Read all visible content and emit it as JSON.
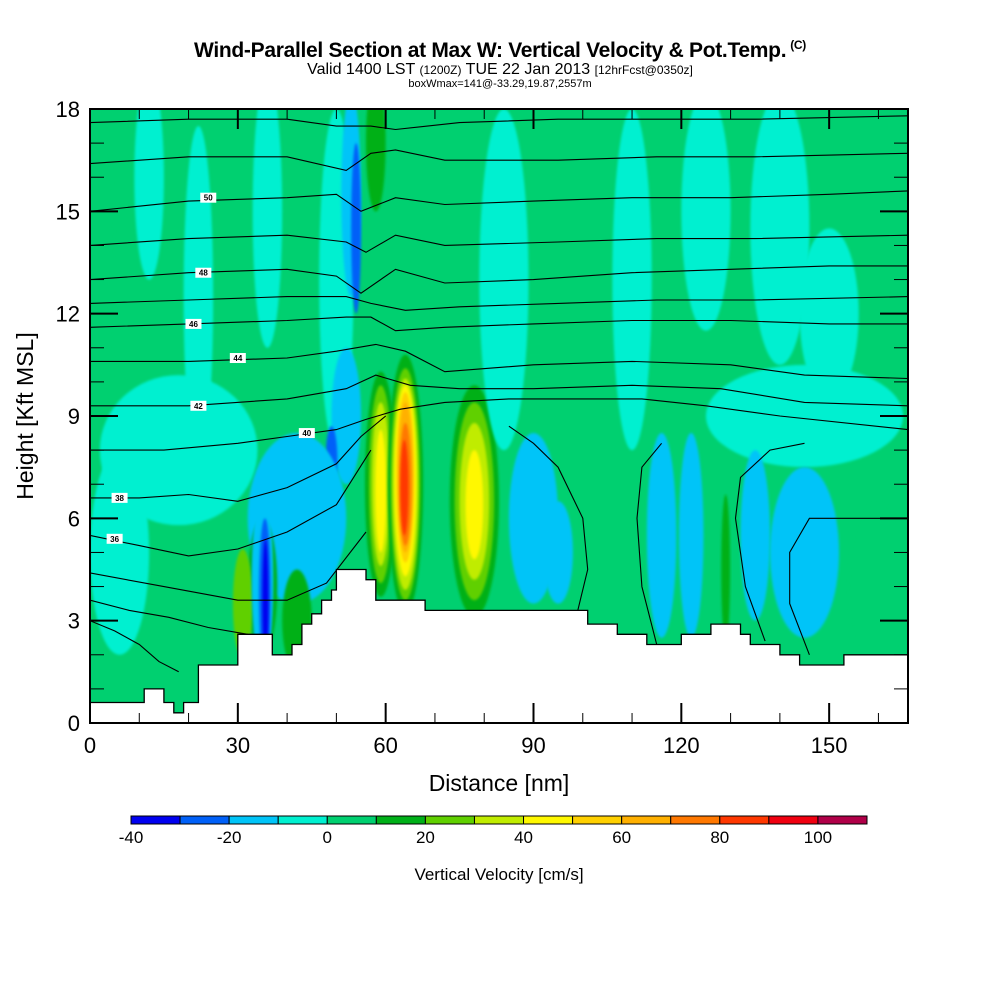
{
  "header": {
    "title": "Wind-Parallel Section at Max W: Vertical Velocity & Pot.Temp.",
    "copyright": "(C)",
    "valid_prefix": "Valid 1400 LST",
    "valid_utc": "(1200Z)",
    "valid_date": "TUE 22 Jan 2013",
    "forecast": "[12hrFcst@0350z]",
    "boxwmax": "boxWmax=141@-33.29,19.87,2557m"
  },
  "chart_data": {
    "type": "heatmap",
    "title": "Wind-Parallel Section at Max W: Vertical Velocity & Pot.Temp.",
    "xlabel": "Distance [nm]",
    "ylabel": "Height [Kft MSL]",
    "xlim": [
      0,
      166
    ],
    "ylim": [
      0,
      18
    ],
    "xticks": [
      0,
      30,
      60,
      90,
      120,
      150
    ],
    "xtick_labels": [
      "0",
      "30",
      "60",
      "90",
      "120",
      "150"
    ],
    "yticks": [
      0,
      3,
      6,
      9,
      12,
      15,
      18
    ],
    "ytick_labels": [
      "0",
      "3",
      "6",
      "9",
      "12",
      "15",
      "18"
    ],
    "colorbar": {
      "title": "Vertical Velocity [cm/s]",
      "bounds": [
        -40,
        -30,
        -20,
        -10,
        0,
        10,
        20,
        30,
        40,
        50,
        60,
        70,
        80,
        90,
        100,
        110
      ],
      "tick_values": [
        -40,
        -20,
        0,
        20,
        40,
        60,
        80,
        100
      ],
      "tick_labels": [
        "-40",
        "-20",
        "0",
        "20",
        "40",
        "60",
        "80",
        "100"
      ],
      "colors": [
        "#0000f0",
        "#0060f8",
        "#00c4f8",
        "#00f0d0",
        "#00d070",
        "#00b018",
        "#60d000",
        "#c0ec00",
        "#fff800",
        "#ffd000",
        "#ffb000",
        "#ff7800",
        "#ff3800",
        "#f00010",
        "#b00048"
      ]
    },
    "background_value": 5,
    "velocity_features": [
      {
        "x": 2,
        "y": 13,
        "rx": 3,
        "ry": 5,
        "value": 5
      },
      {
        "x": 12,
        "y": 16,
        "rx": 3,
        "ry": 3,
        "value": -5
      },
      {
        "x": 22,
        "y": 12.5,
        "rx": 3,
        "ry": 5,
        "value": -5
      },
      {
        "x": 18,
        "y": 8,
        "rx": 16,
        "ry": 2.2,
        "value": -5
      },
      {
        "x": 6,
        "y": 5,
        "rx": 6,
        "ry": 3,
        "value": -5
      },
      {
        "x": 36,
        "y": 15,
        "rx": 3,
        "ry": 4,
        "value": -5
      },
      {
        "x": 50,
        "y": 13,
        "rx": 3.5,
        "ry": 5,
        "value": -5
      },
      {
        "x": 53,
        "y": 15.5,
        "rx": 2,
        "ry": 3,
        "value": -15
      },
      {
        "x": 54,
        "y": 14.5,
        "rx": 1,
        "ry": 2.5,
        "value": -25
      },
      {
        "x": 52,
        "y": 9,
        "rx": 3,
        "ry": 2,
        "value": -15
      },
      {
        "x": 49,
        "y": 7.7,
        "rx": 1.2,
        "ry": 1,
        "value": -25
      },
      {
        "x": 42,
        "y": 6,
        "rx": 10,
        "ry": 2.5,
        "value": -15
      },
      {
        "x": 35,
        "y": 4,
        "rx": 3,
        "ry": 2,
        "value": 15
      },
      {
        "x": 31,
        "y": 3.5,
        "rx": 2,
        "ry": 1.6,
        "value": 25
      },
      {
        "x": 35,
        "y": 4.2,
        "rx": 2.2,
        "ry": 2.6,
        "value": -15
      },
      {
        "x": 35.5,
        "y": 3.8,
        "rx": 1.2,
        "ry": 2.2,
        "value": -25
      },
      {
        "x": 35.6,
        "y": 3.6,
        "rx": 0.6,
        "ry": 1.8,
        "value": -35
      },
      {
        "x": 42,
        "y": 3,
        "rx": 3,
        "ry": 1.5,
        "value": 15
      },
      {
        "x": 58,
        "y": 17,
        "rx": 2,
        "ry": 2,
        "value": 15
      },
      {
        "x": 59,
        "y": 7,
        "rx": 3.2,
        "ry": 3.3,
        "value": 15
      },
      {
        "x": 59,
        "y": 7,
        "rx": 2.4,
        "ry": 2.9,
        "value": 25
      },
      {
        "x": 59,
        "y": 7,
        "rx": 1.8,
        "ry": 2.4,
        "value": 35
      },
      {
        "x": 59,
        "y": 6.8,
        "rx": 1.1,
        "ry": 1.8,
        "value": 45
      },
      {
        "x": 64,
        "y": 7,
        "rx": 3.6,
        "ry": 3.8,
        "value": 15
      },
      {
        "x": 64,
        "y": 7,
        "rx": 3.0,
        "ry": 3.4,
        "value": 25
      },
      {
        "x": 64,
        "y": 7,
        "rx": 2.6,
        "ry": 3.1,
        "value": 35
      },
      {
        "x": 64,
        "y": 7.1,
        "rx": 2.2,
        "ry": 2.8,
        "value": 45
      },
      {
        "x": 64,
        "y": 7.2,
        "rx": 1.8,
        "ry": 2.5,
        "value": 55
      },
      {
        "x": 64,
        "y": 7.2,
        "rx": 1.5,
        "ry": 2.2,
        "value": 65
      },
      {
        "x": 64,
        "y": 7.0,
        "rx": 1.2,
        "ry": 1.8,
        "value": 75
      },
      {
        "x": 63.8,
        "y": 6.9,
        "rx": 0.8,
        "ry": 1.4,
        "value": 85
      },
      {
        "x": 78,
        "y": 6.5,
        "rx": 5,
        "ry": 3.4,
        "value": 15
      },
      {
        "x": 78,
        "y": 6.5,
        "rx": 4,
        "ry": 2.9,
        "value": 25
      },
      {
        "x": 78,
        "y": 6.5,
        "rx": 3,
        "ry": 2.3,
        "value": 35
      },
      {
        "x": 78,
        "y": 6.4,
        "rx": 1.8,
        "ry": 1.6,
        "value": 45
      },
      {
        "x": 90,
        "y": 6,
        "rx": 5,
        "ry": 2.5,
        "value": -15
      },
      {
        "x": 95,
        "y": 5,
        "rx": 3,
        "ry": 1.5,
        "value": -15
      },
      {
        "x": 84,
        "y": 13,
        "rx": 5,
        "ry": 5,
        "value": -5
      },
      {
        "x": 110,
        "y": 13,
        "rx": 4,
        "ry": 5,
        "value": -5
      },
      {
        "x": 125,
        "y": 15,
        "rx": 5,
        "ry": 3.5,
        "value": -5
      },
      {
        "x": 140,
        "y": 14.5,
        "rx": 6,
        "ry": 4,
        "value": -5
      },
      {
        "x": 150,
        "y": 12,
        "rx": 6,
        "ry": 2.5,
        "value": -5
      },
      {
        "x": 145,
        "y": 9,
        "rx": 20,
        "ry": 1.5,
        "value": -5
      },
      {
        "x": 116,
        "y": 5.5,
        "rx": 3,
        "ry": 3,
        "value": -15
      },
      {
        "x": 122,
        "y": 5.5,
        "rx": 2.5,
        "ry": 3,
        "value": -15
      },
      {
        "x": 135,
        "y": 5.5,
        "rx": 3,
        "ry": 2.5,
        "value": -15
      },
      {
        "x": 145,
        "y": 5,
        "rx": 7,
        "ry": 2.5,
        "value": -15
      },
      {
        "x": 129,
        "y": 4.5,
        "rx": 0.9,
        "ry": 2.2,
        "value": 15
      },
      {
        "x": 160,
        "y": 4,
        "rx": 6,
        "ry": 2.5,
        "value": 5
      }
    ],
    "terrain": {
      "x": [
        0,
        11,
        11,
        15,
        15,
        17,
        17,
        19,
        19,
        22,
        22,
        30,
        30,
        37,
        37,
        41,
        41,
        43,
        43,
        45,
        45,
        47,
        47,
        49,
        49,
        50,
        50,
        56,
        56,
        58,
        58,
        68,
        68,
        101,
        101,
        107,
        107,
        113,
        113,
        120,
        120,
        126,
        126,
        132,
        132,
        134,
        134,
        140,
        140,
        144,
        144,
        153,
        153,
        166
      ],
      "y": [
        0.6,
        0.6,
        1.0,
        1.0,
        0.6,
        0.6,
        0.3,
        0.3,
        0.6,
        0.6,
        1.7,
        1.7,
        2.6,
        2.6,
        2.0,
        2.0,
        2.3,
        2.3,
        2.9,
        2.9,
        3.2,
        3.2,
        3.6,
        3.6,
        3.9,
        3.9,
        4.5,
        4.5,
        4.2,
        4.2,
        3.6,
        3.6,
        3.3,
        3.3,
        2.9,
        2.9,
        2.6,
        2.6,
        2.3,
        2.3,
        2.6,
        2.6,
        2.9,
        2.9,
        2.6,
        2.6,
        2.3,
        2.3,
        2.0,
        2.0,
        1.7,
        1.7,
        2.0,
        2.0
      ]
    },
    "theta_contours": [
      {
        "level": 36,
        "label": "36",
        "label_at": [
          5,
          5.4
        ],
        "x": [
          0,
          10,
          20,
          30,
          40,
          50,
          57
        ],
        "y": [
          5.5,
          5.2,
          4.9,
          5.1,
          5.6,
          6.4,
          8.0
        ]
      },
      {
        "level": 38,
        "label": "38",
        "label_at": [
          6,
          6.6
        ],
        "x": [
          0,
          10,
          20,
          30,
          40,
          50,
          55,
          60
        ],
        "y": [
          6.6,
          6.6,
          6.7,
          6.5,
          6.9,
          7.6,
          8.4,
          9.0
        ]
      },
      {
        "level": 40,
        "label": "40",
        "label_at": [
          44,
          8.5
        ],
        "x": [
          0,
          15,
          30,
          40,
          50,
          56,
          63,
          72,
          85,
          100,
          112,
          125,
          140,
          166
        ],
        "y": [
          8.0,
          8.0,
          8.2,
          8.4,
          8.6,
          8.9,
          9.2,
          9.4,
          9.5,
          9.5,
          9.5,
          9.3,
          9.0,
          8.6
        ]
      },
      {
        "level": 42,
        "label": "42",
        "label_at": [
          22,
          9.3
        ],
        "x": [
          0,
          20,
          40,
          52,
          58,
          65,
          75,
          90,
          110,
          128,
          145,
          166
        ],
        "y": [
          9.3,
          9.3,
          9.5,
          9.8,
          10.2,
          9.9,
          9.8,
          9.8,
          9.9,
          9.8,
          9.4,
          9.3
        ]
      },
      {
        "level": 44,
        "label": "44",
        "label_at": [
          30,
          10.7
        ],
        "x": [
          0,
          20,
          40,
          50,
          58,
          64,
          72,
          90,
          110,
          130,
          145,
          166
        ],
        "y": [
          10.6,
          10.6,
          10.7,
          10.9,
          11.1,
          10.9,
          10.3,
          10.5,
          10.6,
          10.5,
          10.2,
          10.1
        ]
      },
      {
        "level": 46,
        "label": "46",
        "label_at": [
          21,
          11.7
        ],
        "x": [
          0,
          20,
          40,
          52,
          57,
          62,
          72,
          90,
          110,
          130,
          150,
          166
        ],
        "y": [
          11.6,
          11.7,
          11.8,
          11.9,
          11.9,
          11.5,
          11.6,
          11.7,
          11.8,
          11.8,
          11.7,
          11.7
        ]
      },
      {
        "level": 48,
        "label": "48",
        "label_at": [
          23,
          13.2
        ],
        "x": [
          0,
          20,
          40,
          50,
          55,
          62,
          72,
          90,
          110,
          130,
          150,
          166
        ],
        "y": [
          13.0,
          13.2,
          13.3,
          13.1,
          12.6,
          13.3,
          12.9,
          13.0,
          13.2,
          13.3,
          13.4,
          13.4
        ]
      },
      {
        "level": 50,
        "label": "50",
        "label_at": [
          24,
          15.4
        ],
        "x": [
          0,
          20,
          40,
          50,
          55,
          62,
          72,
          90,
          110,
          130,
          150,
          166
        ],
        "y": [
          15.0,
          15.3,
          15.4,
          15.5,
          15.0,
          15.4,
          15.2,
          15.3,
          15.4,
          15.4,
          15.5,
          15.6
        ]
      }
    ],
    "extra_theta_lines": [
      {
        "x": [
          0,
          20,
          40,
          52,
          57,
          64,
          75,
          95,
          115,
          135,
          166
        ],
        "y": [
          12.3,
          12.4,
          12.5,
          12.5,
          12.3,
          12.1,
          12.2,
          12.3,
          12.4,
          12.4,
          12.5
        ]
      },
      {
        "x": [
          0,
          20,
          40,
          52,
          56,
          62,
          72,
          95,
          115,
          135,
          166
        ],
        "y": [
          14.0,
          14.2,
          14.3,
          14.1,
          13.8,
          14.3,
          14.0,
          14.1,
          14.2,
          14.2,
          14.3
        ]
      },
      {
        "x": [
          0,
          20,
          40,
          52,
          57,
          62,
          72,
          95,
          115,
          135,
          166
        ],
        "y": [
          16.4,
          16.6,
          16.6,
          16.2,
          16.7,
          16.8,
          16.5,
          16.5,
          16.6,
          16.6,
          16.7
        ]
      },
      {
        "x": [
          0,
          20,
          40,
          50,
          57,
          62,
          75,
          95,
          115,
          135,
          166
        ],
        "y": [
          17.6,
          17.7,
          17.7,
          17.5,
          17.5,
          17.4,
          17.6,
          17.7,
          17.7,
          17.7,
          17.8
        ]
      },
      {
        "x": [
          0,
          15,
          30,
          40,
          48,
          56
        ],
        "y": [
          4.4,
          4.0,
          3.6,
          3.6,
          4.1,
          5.6
        ]
      },
      {
        "x": [
          0,
          8,
          16,
          24,
          32
        ],
        "y": [
          3.6,
          3.3,
          3.1,
          2.8,
          2.6
        ]
      },
      {
        "x": [
          0,
          5,
          10,
          14,
          18
        ],
        "y": [
          3.0,
          2.7,
          2.3,
          1.8,
          1.5
        ]
      },
      {
        "x": [
          115,
          112,
          111,
          112,
          116
        ],
        "y": [
          2.3,
          4,
          6,
          7.5,
          8.2
        ]
      },
      {
        "x": [
          99,
          101,
          100,
          95,
          90,
          85
        ],
        "y": [
          3.3,
          4.5,
          6,
          7.5,
          8.2,
          8.7
        ]
      },
      {
        "x": [
          137,
          133,
          131,
          132,
          138,
          145
        ],
        "y": [
          2.4,
          4,
          6,
          7.2,
          8.0,
          8.2
        ]
      },
      {
        "x": [
          146,
          142,
          142,
          146,
          152,
          166
        ],
        "y": [
          2.0,
          3.5,
          5.0,
          6.0,
          6.0,
          6.0
        ]
      }
    ]
  }
}
